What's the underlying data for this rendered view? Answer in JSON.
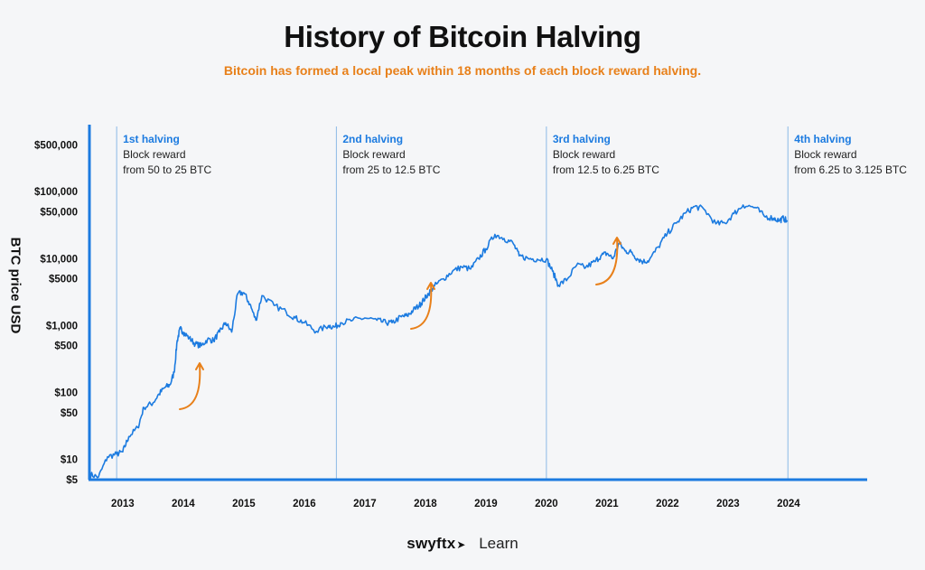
{
  "header": {
    "title": "History of Bitcoin Halving",
    "subtitle": "Bitcoin has formed a local peak within 18 months of each block reward halving."
  },
  "brand": {
    "logo": "swyftx",
    "logo_icon": "swift-bird-icon",
    "section": "Learn"
  },
  "colors": {
    "line": "#1c7be0",
    "accent": "#e8801a",
    "axis": "#1c7be0",
    "halving_line": "#8bb9e6",
    "halving_label": "#1c7be0"
  },
  "chart_data": {
    "type": "line",
    "title": "History of Bitcoin Halving",
    "ylabel": "BTC price USD",
    "xlabel": "",
    "yscale": "log",
    "ylim": [
      5,
      1000000
    ],
    "xlim": [
      2012.45,
      2025.3
    ],
    "y_ticks": [
      {
        "label": "$500,000",
        "value": 500000
      },
      {
        "label": "$100,000",
        "value": 100000
      },
      {
        "label": "$50,000",
        "value": 50000
      },
      {
        "label": "$10,000",
        "value": 10000
      },
      {
        "label": "$5000",
        "value": 5000
      },
      {
        "label": "$1,000",
        "value": 1000
      },
      {
        "label": "$500",
        "value": 500
      },
      {
        "label": "$100",
        "value": 100
      },
      {
        "label": "$50",
        "value": 50
      },
      {
        "label": "$10",
        "value": 10
      },
      {
        "label": "$5",
        "value": 5
      }
    ],
    "x_ticks": [
      "2013",
      "2014",
      "2015",
      "2016",
      "2017",
      "2018",
      "2019",
      "2020",
      "2021",
      "2022",
      "2023",
      "2024"
    ],
    "series": [
      {
        "x": [
          2012.45,
          2012.6,
          2012.75,
          2012.9,
          2013.0,
          2013.1,
          2013.25,
          2013.35,
          2013.5,
          2013.6,
          2013.7,
          2013.78,
          2013.85,
          2013.9,
          2013.95,
          2014.0,
          2014.1,
          2014.2,
          2014.3,
          2014.4,
          2014.5,
          2014.6,
          2014.7,
          2014.8,
          2014.9,
          2015.0,
          2015.1,
          2015.2,
          2015.3,
          2015.5,
          2015.7,
          2015.85,
          2016.0,
          2016.2,
          2016.4,
          2016.5,
          2016.6,
          2016.8,
          2017.0,
          2017.2,
          2017.35,
          2017.45,
          2017.6,
          2017.7,
          2017.8,
          2017.9,
          2017.97,
          2018.05,
          2018.15,
          2018.3,
          2018.45,
          2018.6,
          2018.75,
          2018.88,
          2019.0,
          2019.15,
          2019.3,
          2019.45,
          2019.55,
          2019.7,
          2019.85,
          2020.0,
          2020.1,
          2020.2,
          2020.35,
          2020.5,
          2020.65,
          2020.8,
          2020.9,
          2021.0,
          2021.1,
          2021.2,
          2021.3,
          2021.4,
          2021.5,
          2021.6,
          2021.7,
          2021.85,
          2022.0,
          2022.15,
          2022.3,
          2022.45,
          2022.6,
          2022.8,
          2022.95,
          2023.1,
          2023.25,
          2023.45,
          2023.6,
          2023.75,
          2023.85,
          2023.92,
          2023.98
        ],
        "y": [
          6,
          5.5,
          11,
          12,
          13,
          22,
          30,
          60,
          70,
          95,
          120,
          130,
          200,
          600,
          900,
          800,
          650,
          530,
          500,
          620,
          600,
          800,
          1100,
          800,
          3000,
          3100,
          2100,
          1200,
          2800,
          2000,
          1600,
          1300,
          1100,
          820,
          1000,
          950,
          1100,
          1200,
          1300,
          1200,
          1100,
          1100,
          1350,
          1400,
          1700,
          2000,
          2400,
          3000,
          3900,
          5000,
          6500,
          7500,
          7000,
          10000,
          14000,
          23000,
          20000,
          17000,
          11000,
          10000,
          9800,
          9800,
          6500,
          4000,
          5000,
          8000,
          7400,
          9000,
          11000,
          12000,
          10000,
          17000,
          13000,
          12500,
          10000,
          9000,
          9500,
          15000,
          24000,
          34000,
          48000,
          60000,
          55000,
          33000,
          34000,
          47000,
          63000,
          58000,
          43000,
          40000,
          37000,
          40000,
          36000
        ],
        "name": ""
      }
    ],
    "halvings": [
      {
        "year": 2012.9,
        "label": "1st halving",
        "text1": "Block reward",
        "text2": "from 50 to 25 BTC"
      },
      {
        "year": 2016.53,
        "label": "2nd halving",
        "text1": "Block reward",
        "text2": "from 25 to 12.5 BTC"
      },
      {
        "year": 2020.0,
        "label": "3rd halving",
        "text1": "Block reward",
        "text2": "from 12.5 to 6.25 BTC"
      },
      {
        "year": 2023.99,
        "label": "4th halving",
        "text1": "Block reward",
        "text2": "from 6.25 to 3.125 BTC"
      }
    ]
  }
}
